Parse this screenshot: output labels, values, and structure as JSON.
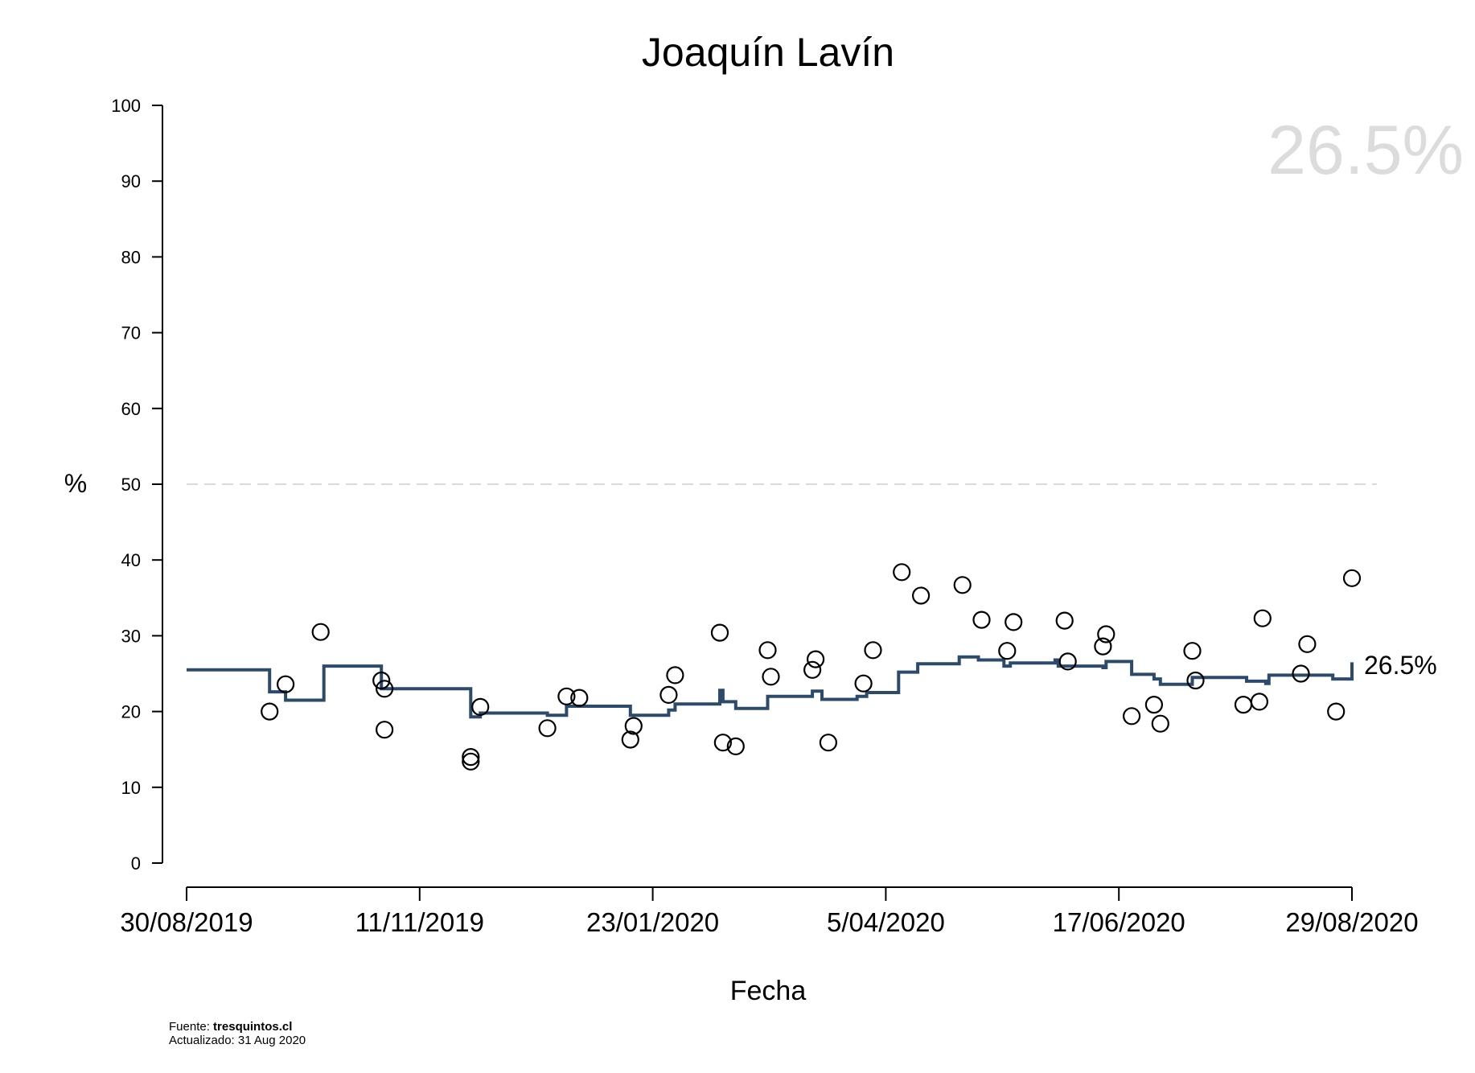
{
  "chart_data": {
    "type": "line",
    "title": "Joaquín Lavín",
    "xlabel": "Fecha",
    "ylabel": "%",
    "xlim": [
      "2019-08-30",
      "2020-08-29"
    ],
    "ylim": [
      0,
      100
    ],
    "x_ticks": [
      "30/08/2019",
      "11/11/2019",
      "23/01/2020",
      "5/04/2020",
      "17/06/2020",
      "29/08/2020"
    ],
    "y_ticks": [
      "0",
      "10",
      "20",
      "30",
      "40",
      "50",
      "60",
      "70",
      "80",
      "90",
      "100"
    ],
    "reference_line": {
      "y": 50,
      "style": "dashed",
      "color": "#d9d9d9"
    },
    "current_value_label": "26.5%",
    "watermark_value": "26.5%",
    "grid": false,
    "colors": {
      "trend": "#2c4a6b",
      "points": "#000000",
      "reference": "#d9d9d9",
      "watermark": "#dcdcdc"
    },
    "series": [
      {
        "type": "step-line",
        "points": [
          [
            "2019-08-30",
            25.5
          ],
          [
            "2019-09-25",
            25.5
          ],
          [
            "2019-09-25",
            22.6
          ],
          [
            "2019-09-30",
            22.6
          ],
          [
            "2019-09-30",
            21.5
          ],
          [
            "2019-10-12",
            21.5
          ],
          [
            "2019-10-12",
            26.0
          ],
          [
            "2019-10-30",
            26.0
          ],
          [
            "2019-10-30",
            23.0
          ],
          [
            "2019-11-27",
            23.0
          ],
          [
            "2019-11-27",
            19.3
          ],
          [
            "2019-11-30",
            19.3
          ],
          [
            "2019-11-30",
            19.8
          ],
          [
            "2019-12-21",
            19.8
          ],
          [
            "2019-12-21",
            19.5
          ],
          [
            "2019-12-27",
            19.5
          ],
          [
            "2019-12-27",
            20.7
          ],
          [
            "2020-01-16",
            20.7
          ],
          [
            "2020-01-16",
            19.5
          ],
          [
            "2020-01-28",
            19.5
          ],
          [
            "2020-01-28",
            20.2
          ],
          [
            "2020-01-30",
            20.2
          ],
          [
            "2020-01-30",
            21.0
          ],
          [
            "2020-02-13",
            21.0
          ],
          [
            "2020-02-13",
            22.8
          ],
          [
            "2020-02-14",
            22.8
          ],
          [
            "2020-02-14",
            21.3
          ],
          [
            "2020-02-18",
            21.3
          ],
          [
            "2020-02-18",
            20.4
          ],
          [
            "2020-02-28",
            20.4
          ],
          [
            "2020-02-28",
            22.0
          ],
          [
            "2020-03-13",
            22.0
          ],
          [
            "2020-03-13",
            22.7
          ],
          [
            "2020-03-16",
            22.7
          ],
          [
            "2020-03-16",
            21.6
          ],
          [
            "2020-03-27",
            21.6
          ],
          [
            "2020-03-27",
            22.0
          ],
          [
            "2020-03-30",
            22.0
          ],
          [
            "2020-03-30",
            22.5
          ],
          [
            "2020-04-09",
            22.5
          ],
          [
            "2020-04-09",
            25.2
          ],
          [
            "2020-04-15",
            25.2
          ],
          [
            "2020-04-15",
            26.3
          ],
          [
            "2020-04-28",
            26.3
          ],
          [
            "2020-04-28",
            27.2
          ],
          [
            "2020-05-04",
            27.2
          ],
          [
            "2020-05-04",
            26.8
          ],
          [
            "2020-05-12",
            26.8
          ],
          [
            "2020-05-12",
            26.0
          ],
          [
            "2020-05-14",
            26.0
          ],
          [
            "2020-05-14",
            26.4
          ],
          [
            "2020-05-28",
            26.4
          ],
          [
            "2020-05-28",
            26.8
          ],
          [
            "2020-05-29",
            26.8
          ],
          [
            "2020-05-29",
            26.0
          ],
          [
            "2020-06-12",
            26.0
          ],
          [
            "2020-06-12",
            25.8
          ],
          [
            "2020-06-13",
            25.8
          ],
          [
            "2020-06-13",
            26.6
          ],
          [
            "2020-06-21",
            26.6
          ],
          [
            "2020-06-21",
            24.9
          ],
          [
            "2020-06-28",
            24.9
          ],
          [
            "2020-06-28",
            24.3
          ],
          [
            "2020-06-30",
            24.3
          ],
          [
            "2020-06-30",
            23.6
          ],
          [
            "2020-07-10",
            23.6
          ],
          [
            "2020-07-10",
            24.5
          ],
          [
            "2020-07-27",
            24.5
          ],
          [
            "2020-07-27",
            24.0
          ],
          [
            "2020-08-02",
            24.0
          ],
          [
            "2020-08-02",
            23.7
          ],
          [
            "2020-08-03",
            23.7
          ],
          [
            "2020-08-03",
            24.8
          ],
          [
            "2020-08-23",
            24.8
          ],
          [
            "2020-08-23",
            24.3
          ],
          [
            "2020-08-29",
            24.3
          ],
          [
            "2020-08-29",
            26.5
          ]
        ]
      },
      {
        "type": "scatter",
        "points": [
          [
            "2019-09-25",
            20.0
          ],
          [
            "2019-09-30",
            23.6
          ],
          [
            "2019-10-11",
            30.5
          ],
          [
            "2019-10-30",
            24.1
          ],
          [
            "2019-10-31",
            23.0
          ],
          [
            "2019-10-31",
            17.6
          ],
          [
            "2019-11-27",
            14.0
          ],
          [
            "2019-11-27",
            13.4
          ],
          [
            "2019-11-30",
            20.6
          ],
          [
            "2019-12-21",
            17.8
          ],
          [
            "2019-12-27",
            22.0
          ],
          [
            "2019-12-31",
            21.8
          ],
          [
            "2020-01-16",
            16.3
          ],
          [
            "2020-01-17",
            18.1
          ],
          [
            "2020-01-28",
            22.2
          ],
          [
            "2020-01-30",
            24.8
          ],
          [
            "2020-02-13",
            30.4
          ],
          [
            "2020-02-14",
            15.9
          ],
          [
            "2020-02-18",
            15.4
          ],
          [
            "2020-02-28",
            28.1
          ],
          [
            "2020-02-29",
            24.6
          ],
          [
            "2020-03-13",
            25.5
          ],
          [
            "2020-03-14",
            26.9
          ],
          [
            "2020-03-18",
            15.9
          ],
          [
            "2020-03-29",
            23.7
          ],
          [
            "2020-04-01",
            28.1
          ],
          [
            "2020-04-10",
            38.4
          ],
          [
            "2020-04-16",
            35.3
          ],
          [
            "2020-04-29",
            36.7
          ],
          [
            "2020-05-05",
            32.1
          ],
          [
            "2020-05-13",
            28.0
          ],
          [
            "2020-05-15",
            31.8
          ],
          [
            "2020-05-31",
            32.0
          ],
          [
            "2020-06-01",
            26.6
          ],
          [
            "2020-06-12",
            28.6
          ],
          [
            "2020-06-13",
            30.2
          ],
          [
            "2020-06-21",
            19.4
          ],
          [
            "2020-06-28",
            20.9
          ],
          [
            "2020-06-30",
            18.4
          ],
          [
            "2020-07-10",
            28.0
          ],
          [
            "2020-07-11",
            24.1
          ],
          [
            "2020-07-26",
            20.9
          ],
          [
            "2020-07-31",
            21.3
          ],
          [
            "2020-08-01",
            32.3
          ],
          [
            "2020-08-13",
            25.0
          ],
          [
            "2020-08-15",
            28.9
          ],
          [
            "2020-08-24",
            20.0
          ],
          [
            "2020-08-29",
            37.6
          ]
        ]
      }
    ]
  },
  "footer": {
    "source_label": "Fuente: ",
    "source_site": "tresquintos.cl",
    "updated": "Actualizado: 31 Aug 2020"
  }
}
